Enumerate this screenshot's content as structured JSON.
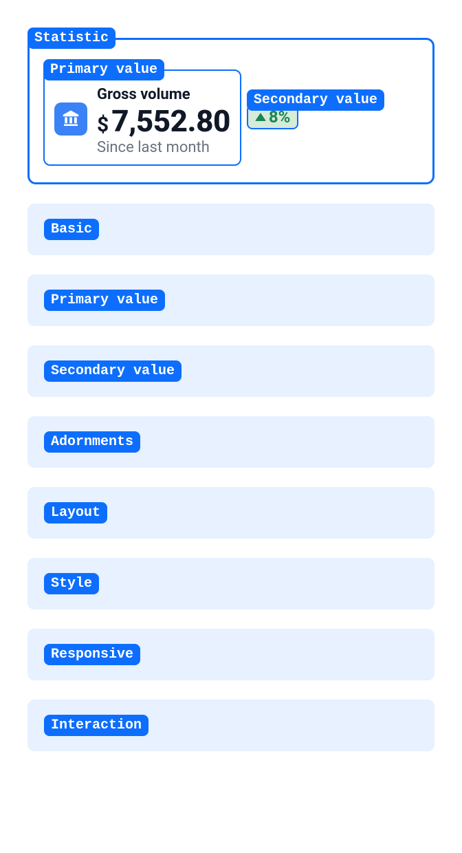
{
  "colors": {
    "primary": "#0d6efd",
    "section_bg": "#e7f1ff",
    "icon_bg": "#3b82f6",
    "success_bg": "#d6ebd9",
    "success_fg": "#198754",
    "muted": "#6b7280",
    "text": "#111827"
  },
  "hero": {
    "tag": "Statistic",
    "primary": {
      "tag": "Primary value",
      "title": "Gross volume",
      "currency": "$",
      "value": "7,552.80",
      "subtitle": "Since last month",
      "icon": "bank-icon"
    },
    "secondary": {
      "tag": "Secondary value",
      "direction": "up",
      "percent": "8%"
    }
  },
  "sections": [
    {
      "label": "Basic"
    },
    {
      "label": "Primary value"
    },
    {
      "label": "Secondary value"
    },
    {
      "label": "Adornments"
    },
    {
      "label": "Layout"
    },
    {
      "label": "Style"
    },
    {
      "label": "Responsive"
    },
    {
      "label": "Interaction"
    }
  ]
}
